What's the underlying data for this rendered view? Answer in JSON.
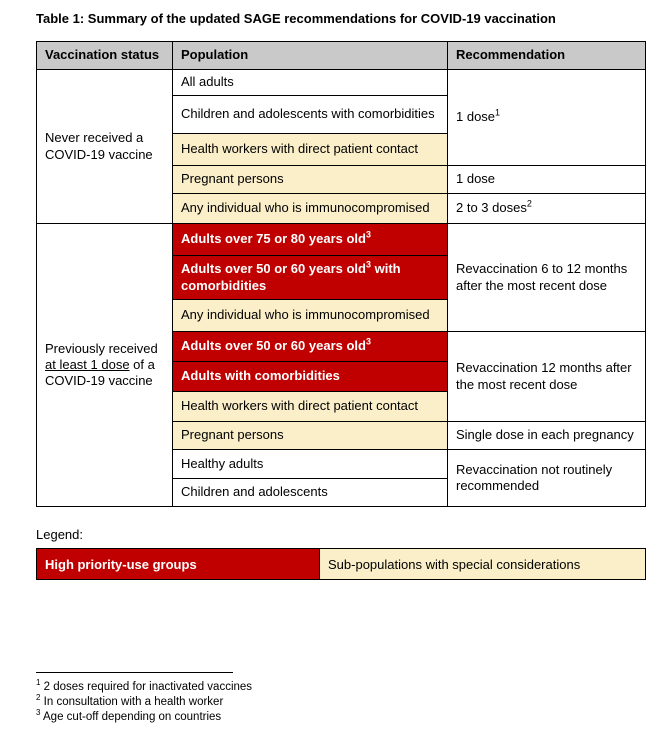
{
  "page": {
    "title": "Table 1: Summary of the updated SAGE recommendations for COVID-19 vaccination"
  },
  "colors": {
    "high_priority": "#C00000",
    "special_considerations": "#FBEFC9",
    "header_bg": "#C9C9C9"
  },
  "table": {
    "headers": [
      "Vaccination status",
      "Population",
      "Recommendation"
    ],
    "section1": {
      "status": "Never received a COVID-19 vaccine",
      "rows": [
        {
          "text": "All adults",
          "style": "plain"
        },
        {
          "text": "Children and adolescents with comorbidities",
          "style": "plain"
        },
        {
          "text": "Health workers with direct patient contact",
          "style": "special"
        },
        {
          "text": "Pregnant persons",
          "style": "special"
        },
        {
          "text": "Any individual who is immunocompromised",
          "style": "special"
        }
      ],
      "recs": [
        {
          "text": "1 dose",
          "sup": "1",
          "rowspan": 3
        },
        {
          "text": "1 dose",
          "rowspan": 1
        },
        {
          "text": "2 to 3 doses",
          "sup": "2",
          "rowspan": 1
        }
      ]
    },
    "section2": {
      "status": {
        "pre": "Previously received ",
        "underline": "at least 1 dose",
        "post": " of a COVID-19 vaccine"
      },
      "rows": [
        {
          "text": "Adults over 75 or 80 years old",
          "sup": "3",
          "style": "priority"
        },
        {
          "text": "Adults over 50 or 60 years old",
          "sup": "3",
          "text2": " with comorbidities",
          "style": "priority"
        },
        {
          "text": "Any individual who is immunocompromised",
          "style": "special"
        },
        {
          "text": "Adults over 50 or 60 years old",
          "sup": "3",
          "style": "priority"
        },
        {
          "text": "Adults with comorbidities",
          "style": "priority"
        },
        {
          "text": "Health workers with direct patient contact",
          "style": "special"
        },
        {
          "text": "Pregnant persons",
          "style": "special"
        },
        {
          "text": "Healthy adults",
          "style": "plain"
        },
        {
          "text": "Children and adolescents",
          "style": "plain"
        }
      ],
      "recs": [
        {
          "text": "Revaccination 6 to 12 months after the most recent dose",
          "rowspan": 3
        },
        {
          "text": "Revaccination 12 months after the most recent dose",
          "rowspan": 3
        },
        {
          "text": "Single dose in each pregnancy",
          "rowspan": 1
        },
        {
          "text": "Revaccination not routinely recommended",
          "rowspan": 2
        }
      ]
    }
  },
  "legend": {
    "label": "Legend:",
    "high_priority": "High priority-use groups",
    "special": "Sub-populations with special considerations"
  },
  "footnotes": [
    {
      "sup": "1",
      "text": "2 doses required for inactivated vaccines"
    },
    {
      "sup": "2",
      "text": "In consultation with a health worker"
    },
    {
      "sup": "3",
      "text": "Age cut-off depending on countries"
    }
  ]
}
